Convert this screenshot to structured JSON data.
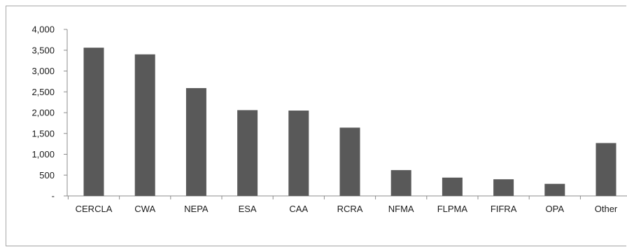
{
  "chart_data": {
    "type": "bar",
    "categories": [
      "CERCLA",
      "CWA",
      "NEPA",
      "ESA",
      "CAA",
      "RCRA",
      "NFMA",
      "FLPMA",
      "FIFRA",
      "OPA",
      "Other"
    ],
    "values": [
      3560,
      3400,
      2590,
      2060,
      2050,
      1640,
      620,
      440,
      400,
      290,
      1270
    ],
    "ylim": [
      0,
      4000
    ],
    "yticks": [
      0,
      500,
      1000,
      1500,
      2000,
      2500,
      3000,
      3500,
      4000
    ],
    "ytick_labels": [
      "-",
      "500",
      "1,000",
      "1,500",
      "2,000",
      "2,500",
      "3,000",
      "3,500",
      "4,000"
    ],
    "grid": false,
    "legend": "none",
    "bar_color": "#595959"
  }
}
